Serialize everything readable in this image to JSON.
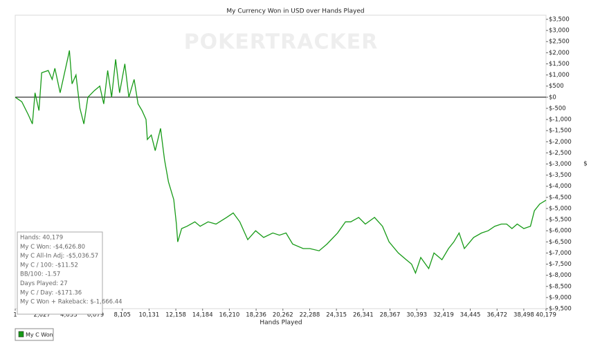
{
  "chart_data": {
    "type": "line",
    "title": "My Currency Won in USD over Hands Played",
    "watermark": "POKERTRACKER",
    "x_label": "Hands Played",
    "y_label": "$",
    "xlim": [
      1,
      40179
    ],
    "ylim": [
      -9500,
      3500
    ],
    "xticks": [
      1,
      {
        "value": 2027,
        "label": "2,027"
      },
      {
        "value": 4053,
        "label": "4,053"
      },
      {
        "value": 6079,
        "label": "6,079"
      },
      {
        "value": 8105,
        "label": "8,105"
      },
      {
        "value": 10131,
        "label": "10,131"
      },
      {
        "value": 12158,
        "label": "12,158"
      },
      {
        "value": 14184,
        "label": "14,184"
      },
      {
        "value": 16210,
        "label": "16,210"
      },
      {
        "value": 18236,
        "label": "18,236"
      },
      {
        "value": 20262,
        "label": "20,262"
      },
      {
        "value": 22288,
        "label": "22,288"
      },
      {
        "value": 24315,
        "label": "24,315"
      },
      {
        "value": 26341,
        "label": "26,341"
      },
      {
        "value": 28367,
        "label": "28,367"
      },
      {
        "value": 30393,
        "label": "30,393"
      },
      {
        "value": 32419,
        "label": "32,419"
      },
      {
        "value": 34445,
        "label": "34,445"
      },
      {
        "value": 36472,
        "label": "36,472"
      },
      {
        "value": 38498,
        "label": "38,498"
      },
      {
        "value": 40179,
        "label": "40,179"
      }
    ],
    "yticks": [
      {
        "value": 3500,
        "label": "$3,500"
      },
      {
        "value": 3000,
        "label": "$3,000"
      },
      {
        "value": 2500,
        "label": "$2,500"
      },
      {
        "value": 2000,
        "label": "$2,000"
      },
      {
        "value": 1500,
        "label": "$1,500"
      },
      {
        "value": 1000,
        "label": "$1,000"
      },
      {
        "value": 500,
        "label": "$500"
      },
      {
        "value": 0,
        "label": "$0"
      },
      {
        "value": -500,
        "label": "$-500"
      },
      {
        "value": -1000,
        "label": "$-1,000"
      },
      {
        "value": -1500,
        "label": "$-1,500"
      },
      {
        "value": -2000,
        "label": "$-2,000"
      },
      {
        "value": -2500,
        "label": "$-2,500"
      },
      {
        "value": -3000,
        "label": "$-3,000"
      },
      {
        "value": -3500,
        "label": "$-3,500"
      },
      {
        "value": -4000,
        "label": "$-4,000"
      },
      {
        "value": -4500,
        "label": "$-4,500"
      },
      {
        "value": -5000,
        "label": "$-5,000"
      },
      {
        "value": -5500,
        "label": "$-5,500"
      },
      {
        "value": -6000,
        "label": "$-6,000"
      },
      {
        "value": -6500,
        "label": "$-6,500"
      },
      {
        "value": -7000,
        "label": "$-7,000"
      },
      {
        "value": -7500,
        "label": "$-7,500"
      },
      {
        "value": -8000,
        "label": "$-8,000"
      },
      {
        "value": -8500,
        "label": "$-8,500"
      },
      {
        "value": -9000,
        "label": "$-9,000"
      },
      {
        "value": -9500,
        "label": "$-9,500"
      }
    ],
    "zero_line": true,
    "series": [
      {
        "name": "My C Won",
        "color": "#169a16",
        "x": [
          1,
          500,
          1000,
          1300,
          1500,
          1800,
          2000,
          2500,
          2800,
          3000,
          3400,
          3700,
          4000,
          4100,
          4300,
          4600,
          4900,
          5200,
          5500,
          6000,
          6400,
          6700,
          7000,
          7300,
          7600,
          7900,
          8300,
          8600,
          9000,
          9300,
          9600,
          9900,
          10000,
          10300,
          10600,
          11000,
          11300,
          11600,
          12000,
          12200,
          12300,
          12600,
          13000,
          13600,
          14000,
          14600,
          15200,
          16000,
          16500,
          17000,
          17600,
          18200,
          18800,
          19500,
          20000,
          20500,
          21000,
          21800,
          22300,
          23000,
          23600,
          24400,
          25000,
          25400,
          26000,
          26500,
          27200,
          27800,
          28300,
          29000,
          29600,
          30000,
          30300,
          30700,
          31300,
          31700,
          32300,
          32800,
          33200,
          33600,
          34000,
          34700,
          35300,
          35800,
          36300,
          36800,
          37200,
          37600,
          38000,
          38500,
          39000,
          39300,
          39700,
          40179
        ],
        "values": [
          0,
          -200,
          -800,
          -1200,
          200,
          -600,
          1100,
          1200,
          800,
          1300,
          200,
          1000,
          1800,
          2100,
          600,
          1000,
          -500,
          -1200,
          0,
          300,
          500,
          -300,
          1200,
          0,
          1700,
          200,
          1500,
          0,
          800,
          -300,
          -600,
          -1000,
          -1900,
          -1700,
          -2400,
          -1400,
          -2800,
          -3800,
          -4600,
          -5700,
          -6500,
          -5900,
          -5800,
          -5600,
          -5800,
          -5600,
          -5700,
          -5400,
          -5200,
          -5600,
          -6400,
          -6000,
          -6300,
          -6100,
          -6200,
          -6100,
          -6600,
          -6800,
          -6800,
          -6900,
          -6600,
          -6100,
          -5600,
          -5600,
          -5400,
          -5700,
          -5400,
          -5800,
          -6500,
          -7000,
          -7300,
          -7500,
          -7900,
          -7200,
          -7700,
          -7000,
          -7300,
          -6800,
          -6500,
          -6100,
          -6800,
          -6300,
          -6100,
          -6000,
          -5800,
          -5700,
          -5700,
          -5900,
          -5700,
          -5900,
          -5800,
          -5100,
          -4800,
          -4627
        ]
      }
    ]
  },
  "stats": [
    "Hands: 40,179",
    "My C Won: -$4,626.80",
    "My C All-In Adj: -$5,036.57",
    "My C / 100: -$11.52",
    "BB/100: -1.57",
    "Days Played: 27",
    "My C / Day: -$171.36",
    "My C Won + Rakeback: $-1,666.44"
  ]
}
